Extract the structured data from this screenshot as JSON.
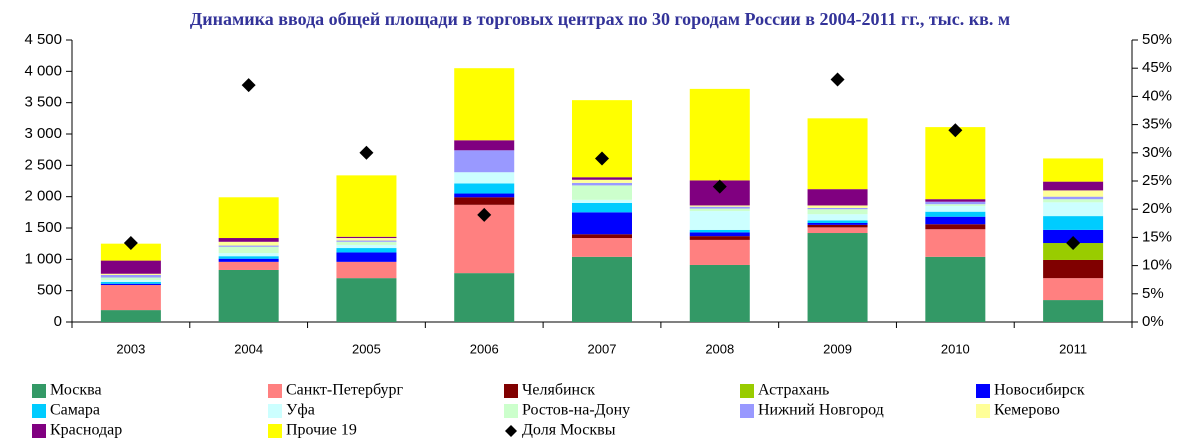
{
  "chart_data": {
    "type": "bar",
    "stacked": true,
    "title": "Динамика ввода общей площади в торговых центрах по 30 городам России в 2004-2011 гг., тыс. кв. м",
    "categories": [
      "2003",
      "2004",
      "2005",
      "2006",
      "2007",
      "2008",
      "2009",
      "2010",
      "2011"
    ],
    "series": [
      {
        "name": "Москва",
        "color": "#339966",
        "values": [
          190,
          830,
          700,
          780,
          1040,
          910,
          1420,
          1040,
          350
        ]
      },
      {
        "name": "Санкт-Петербург",
        "color": "#ff8080",
        "values": [
          400,
          130,
          260,
          1090,
          300,
          400,
          90,
          440,
          350
        ]
      },
      {
        "name": "Челябинск",
        "color": "#800000",
        "values": [
          0,
          0,
          0,
          120,
          60,
          60,
          40,
          80,
          290
        ]
      },
      {
        "name": "Астрахань",
        "color": "#99cc00",
        "values": [
          0,
          0,
          0,
          0,
          0,
          0,
          0,
          0,
          270
        ]
      },
      {
        "name": "Новосибирск",
        "color": "#0000ff",
        "values": [
          20,
          50,
          150,
          60,
          350,
          60,
          30,
          120,
          210
        ]
      },
      {
        "name": "Самара",
        "color": "#00ccff",
        "values": [
          30,
          40,
          70,
          160,
          150,
          40,
          40,
          80,
          220
        ]
      },
      {
        "name": "Уфа",
        "color": "#ccffff",
        "values": [
          30,
          50,
          50,
          180,
          50,
          300,
          100,
          90,
          220
        ]
      },
      {
        "name": "Ростов-на-Дону",
        "color": "#ccffcc",
        "values": [
          40,
          100,
          50,
          0,
          230,
          40,
          80,
          30,
          50
        ]
      },
      {
        "name": "Нижний Новгород",
        "color": "#9999ff",
        "values": [
          40,
          20,
          20,
          350,
          40,
          30,
          20,
          40,
          40
        ]
      },
      {
        "name": "Кемерово",
        "color": "#ffff99",
        "values": [
          20,
          60,
          40,
          0,
          50,
          20,
          40,
          0,
          100
        ]
      },
      {
        "name": "Краснодар",
        "color": "#800080",
        "values": [
          210,
          60,
          20,
          160,
          40,
          400,
          260,
          40,
          140
        ]
      },
      {
        "name": "Прочие 19",
        "color": "#ffff00",
        "values": [
          270,
          650,
          980,
          1150,
          1230,
          1460,
          1130,
          1150,
          370
        ]
      },
      {
        "name": "Доля Москвы",
        "color": "#000000",
        "axis": "y2",
        "marker": "diamond",
        "values": [
          14,
          42,
          30,
          19,
          29,
          24,
          43,
          34,
          14
        ]
      }
    ],
    "ylim": [
      0,
      4500
    ],
    "yticks": [
      0,
      500,
      {
        "value": 1000,
        "label": "1 000"
      },
      {
        "value": 1500,
        "label": "1 500"
      },
      {
        "value": 2000,
        "label": "2 000"
      },
      {
        "value": 2500,
        "label": "2 500"
      },
      {
        "value": 3000,
        "label": "3 000"
      },
      {
        "value": 3500,
        "label": "3 500"
      },
      {
        "value": 4000,
        "label": "4 000"
      },
      {
        "value": 4500,
        "label": "4 500"
      }
    ],
    "y2lim": [
      0,
      50
    ],
    "y2ticks": [
      {
        "value": 0,
        "label": "0%"
      },
      {
        "value": 5,
        "label": "5%"
      },
      {
        "value": 10,
        "label": "10%"
      },
      {
        "value": 15,
        "label": "15%"
      },
      {
        "value": 20,
        "label": "20%"
      },
      {
        "value": 25,
        "label": "25%"
      },
      {
        "value": 30,
        "label": "30%"
      },
      {
        "value": 35,
        "label": "35%"
      },
      {
        "value": 40,
        "label": "40%"
      },
      {
        "value": 45,
        "label": "45%"
      },
      {
        "value": 50,
        "label": "50%"
      }
    ],
    "grid": false,
    "legend": "bottom"
  }
}
